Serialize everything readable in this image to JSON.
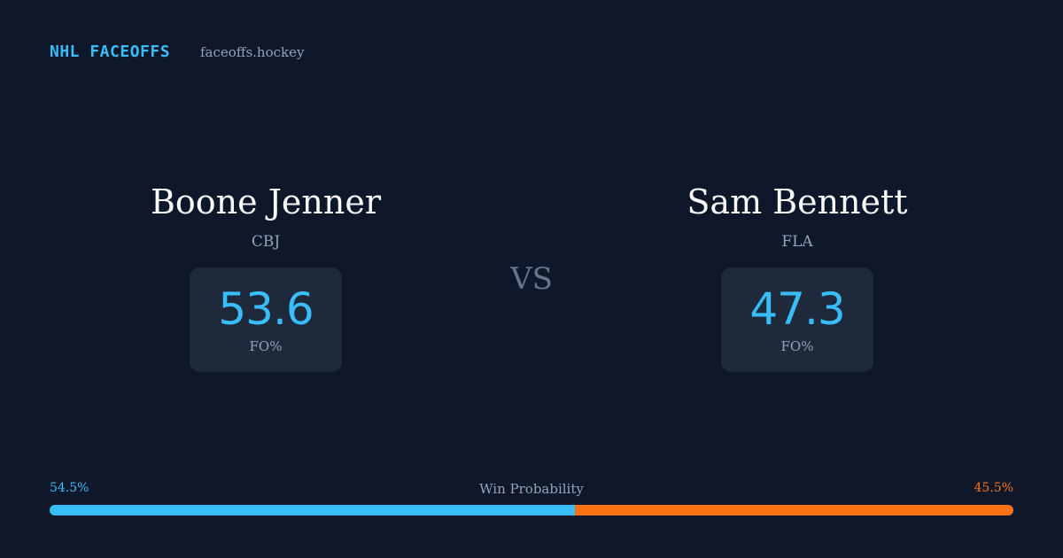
{
  "header": {
    "brand": "NHL FACEOFFS",
    "site": "faceoffs.hockey"
  },
  "players": [
    {
      "name": "Boone Jenner",
      "team": "CBJ",
      "fo_value": 53.6,
      "fo_label": "FO%"
    },
    {
      "name": "Sam Bennett",
      "team": "FLA",
      "fo_value": 47.3,
      "fo_label": "FO%"
    }
  ],
  "vs": "VS",
  "win_probability": {
    "title": "Win Probability",
    "home": {
      "value": 54.5,
      "label": "54.5%",
      "color": "#38bdf8"
    },
    "away": {
      "value": 45.5,
      "label": "45.5%",
      "color": "#f97316"
    }
  }
}
